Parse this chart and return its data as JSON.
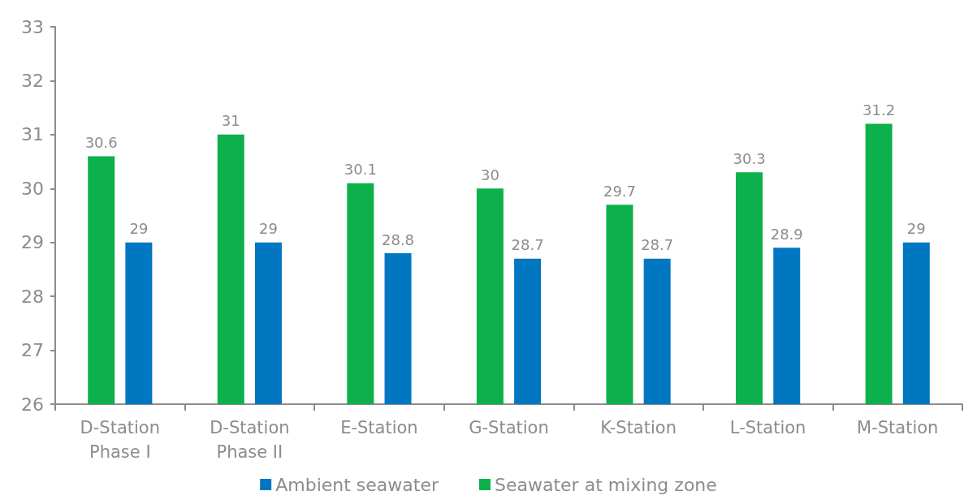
{
  "chart_data": {
    "type": "bar",
    "categories": [
      "D-Station\nPhase I",
      "D-Station\nPhase II",
      "E-Station",
      "G-Station",
      "K-Station",
      "L-Station",
      "M-Station"
    ],
    "series": [
      {
        "name": "Seawater at mixing zone",
        "color": "#0db14b",
        "values": [
          30.6,
          31,
          30.1,
          30,
          29.7,
          30.3,
          31.2
        ]
      },
      {
        "name": "Ambient seawater",
        "color": "#0077c0",
        "values": [
          29,
          29,
          28.8,
          28.7,
          28.7,
          28.9,
          29
        ]
      }
    ],
    "ylim": [
      26,
      33
    ],
    "yticks": [
      26,
      27,
      28,
      29,
      30,
      31,
      32,
      33
    ],
    "data_labels": true,
    "grid": false,
    "legend": "bottom"
  }
}
